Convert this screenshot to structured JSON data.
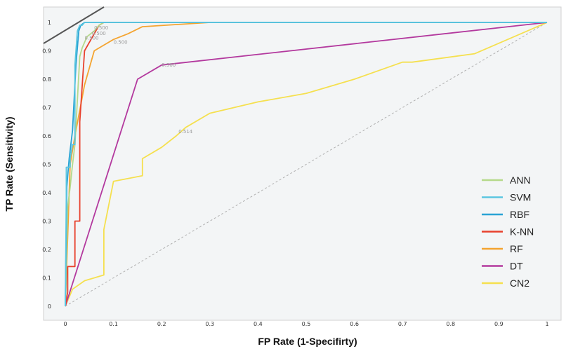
{
  "chart_data": {
    "type": "line",
    "title": "",
    "xlabel": "FP Rate (1-Specifirty)",
    "ylabel": "TP Rate (Sensitivity)",
    "xlim": [
      0,
      1
    ],
    "ylim": [
      0,
      1
    ],
    "x_ticks": [
      "0",
      "0.1",
      "0.2",
      "0.3",
      "0.4",
      "0.5",
      "0.6",
      "0.7",
      "0.8",
      "0.9",
      "1"
    ],
    "y_ticks": [
      "0",
      "0.1",
      "0.2",
      "0.3",
      "0.4",
      "0.5",
      "0.6",
      "0.7",
      "0.8",
      "0.9",
      "1"
    ],
    "grid": false,
    "legend_position": "bottom-right",
    "series": [
      {
        "name": "ANN",
        "color": "#b5d98a",
        "x": [
          0,
          0.005,
          0.01,
          0.015,
          0.02,
          0.03,
          0.035,
          0.045,
          0.06,
          0.07,
          0.08,
          1
        ],
        "y": [
          0,
          0.35,
          0.42,
          0.5,
          0.57,
          0.88,
          0.91,
          0.95,
          0.97,
          0.99,
          1,
          1
        ]
      },
      {
        "name": "SVM",
        "color": "#5bc6e0",
        "x": [
          0,
          0.002,
          0.002,
          0.01,
          0.01,
          0.015,
          0.02,
          0.02,
          0.025,
          0.03,
          0.035,
          0.04,
          0.05,
          1
        ],
        "y": [
          0,
          0.38,
          0.49,
          0.49,
          0.52,
          0.57,
          0.57,
          0.85,
          0.97,
          0.99,
          0.99,
          1,
          1,
          1
        ]
      },
      {
        "name": "RBF",
        "color": "#2aa3d4",
        "x": [
          0,
          0.003,
          0.008,
          0.015,
          0.022,
          0.028,
          0.032,
          0.04,
          1
        ],
        "y": [
          0,
          0.42,
          0.52,
          0.62,
          0.85,
          0.97,
          0.99,
          1,
          1
        ]
      },
      {
        "name": "K-NN",
        "color": "#e8412d",
        "x": [
          0,
          0.005,
          0.005,
          0.02,
          0.02,
          0.03,
          0.03,
          0.04,
          0.05,
          0.06,
          0.07,
          0.08,
          1
        ],
        "y": [
          0,
          0.05,
          0.14,
          0.14,
          0.3,
          0.3,
          0.65,
          0.9,
          0.93,
          0.96,
          0.99,
          1,
          1
        ]
      },
      {
        "name": "RF",
        "color": "#f4a430",
        "x": [
          0,
          0.01,
          0.02,
          0.04,
          0.06,
          0.08,
          0.1,
          0.13,
          0.16,
          0.3,
          1
        ],
        "y": [
          0,
          0.5,
          0.6,
          0.78,
          0.9,
          0.92,
          0.94,
          0.96,
          0.985,
          1,
          1
        ]
      },
      {
        "name": "DT",
        "color": "#b3399e",
        "x": [
          0,
          0.15,
          0.2,
          1
        ],
        "y": [
          0,
          0.8,
          0.85,
          1
        ]
      },
      {
        "name": "CN2",
        "color": "#f5e04f",
        "x": [
          0,
          0.015,
          0.04,
          0.08,
          0.08,
          0.1,
          0.16,
          0.16,
          0.2,
          0.23,
          0.25,
          0.3,
          0.4,
          0.5,
          0.6,
          0.7,
          0.72,
          0.85,
          1
        ],
        "y": [
          0,
          0.06,
          0.09,
          0.11,
          0.27,
          0.44,
          0.46,
          0.52,
          0.56,
          0.6,
          0.63,
          0.68,
          0.72,
          0.75,
          0.8,
          0.86,
          0.86,
          0.89,
          1
        ]
      }
    ],
    "diagonal": {
      "x": [
        0,
        1
      ],
      "y": [
        0,
        1
      ],
      "color": "#b0b0b0",
      "style": "dashed"
    },
    "annotations": [
      {
        "text": "0.500",
        "x": 0.1,
        "y": 0.925
      },
      {
        "text": "0.500",
        "x": 0.2,
        "y": 0.845
      },
      {
        "text": "0.514",
        "x": 0.235,
        "y": 0.61
      },
      {
        "text": "0.500",
        "x": 0.06,
        "y": 0.975
      },
      {
        "text": "0.500",
        "x": 0.055,
        "y": 0.955
      },
      {
        "text": "0.500",
        "x": 0.04,
        "y": 0.94
      }
    ]
  }
}
